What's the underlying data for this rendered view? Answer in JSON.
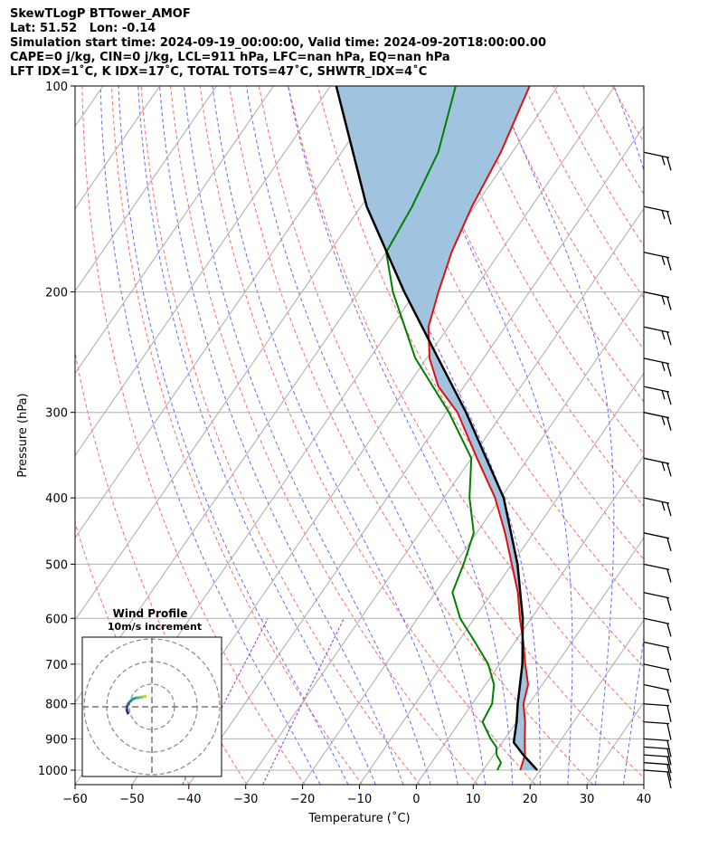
{
  "header": {
    "line1": "SkewTLogP BTTower_AMOF",
    "line2": "Lat: 51.52   Lon: -0.14",
    "line3": "Simulation start time: 2024-09-19_00:00:00, Valid time: 2024-09-20T18:00:00.00",
    "line4": "CAPE=0 j/kg, CIN=0 j/kg, LCL=911 hPa, LFC=nan hPa, EQ=nan hPa",
    "line5": "LFT IDX=1˚C, K IDX=17˚C, TOTAL TOTS=47˚C, SHWTR_IDX=4˚C"
  },
  "chart_data": {
    "type": "line",
    "title": "",
    "xlabel": "Temperature (˚C)",
    "ylabel": "Pressure (hPa)",
    "x_ticks": [
      -60,
      -50,
      -40,
      -30,
      -20,
      -10,
      0,
      10,
      20,
      30,
      40
    ],
    "x_tick_labels": [
      "−60",
      "−50",
      "−40",
      "−30",
      "−20",
      "−10",
      "0",
      "10",
      "20",
      "30",
      "40"
    ],
    "y_ticks": [
      100,
      200,
      300,
      400,
      500,
      600,
      700,
      800,
      900,
      1000
    ],
    "y_tick_labels": [
      "100",
      "200",
      "300",
      "400",
      "500",
      "600",
      "700",
      "800",
      "900",
      "1000"
    ],
    "xlim": [
      -60,
      40
    ],
    "ylim": [
      1050,
      100
    ],
    "y_scale": "log",
    "grid": true,
    "colors": {
      "temperature": "#e01010",
      "dewpoint": "#008000",
      "parcel": "#000000",
      "cape_fill": "#a0c4df",
      "dry_adiabat": "#ff6666",
      "moist_adiabat": "#6666ff",
      "mixing_ratio": "#9933cc",
      "isotherm": "#aaaaaa"
    },
    "series": [
      {
        "name": "temperature",
        "pressure": [
          1000,
          975,
          950,
          925,
          900,
          850,
          800,
          750,
          700,
          650,
          600,
          550,
          500,
          450,
          400,
          350,
          300,
          275,
          250,
          225,
          200,
          175,
          150,
          125,
          100
        ],
        "values": [
          16.5,
          16.0,
          15.5,
          14.5,
          13.5,
          11.5,
          9.0,
          7.5,
          4.5,
          1.5,
          -2.0,
          -5.5,
          -10.0,
          -15.0,
          -21.0,
          -29.0,
          -38.0,
          -44.5,
          -49.5,
          -53.5,
          -56.0,
          -58.5,
          -60.5,
          -62.0,
          -65.0
        ]
      },
      {
        "name": "dewpoint",
        "pressure": [
          1000,
          975,
          950,
          925,
          900,
          850,
          800,
          750,
          700,
          650,
          600,
          550,
          500,
          450,
          400,
          350,
          300,
          250,
          200,
          175,
          150,
          125,
          100
        ],
        "values": [
          12.5,
          12.2,
          10.5,
          9.5,
          7.5,
          4.0,
          3.5,
          1.5,
          -2.0,
          -7.0,
          -12.5,
          -17.0,
          -18.5,
          -20.5,
          -25.5,
          -30.0,
          -39.5,
          -52.0,
          -64.0,
          -70.0,
          -71.0,
          -73.0,
          -78.0
        ]
      },
      {
        "name": "parcel",
        "pressure": [
          1000,
          950,
          911,
          850,
          800,
          700,
          600,
          500,
          400,
          300,
          250,
          200,
          150,
          100
        ],
        "values": [
          19.5,
          15.2,
          12.0,
          10.0,
          8.0,
          4.0,
          -1.5,
          -9.0,
          -19.5,
          -36.5,
          -48.0,
          -62.0,
          -79.0,
          -99.0
        ]
      }
    ],
    "wind_profile_inset": {
      "title": "Wind Profile",
      "subtitle": "10m/s increment"
    }
  }
}
